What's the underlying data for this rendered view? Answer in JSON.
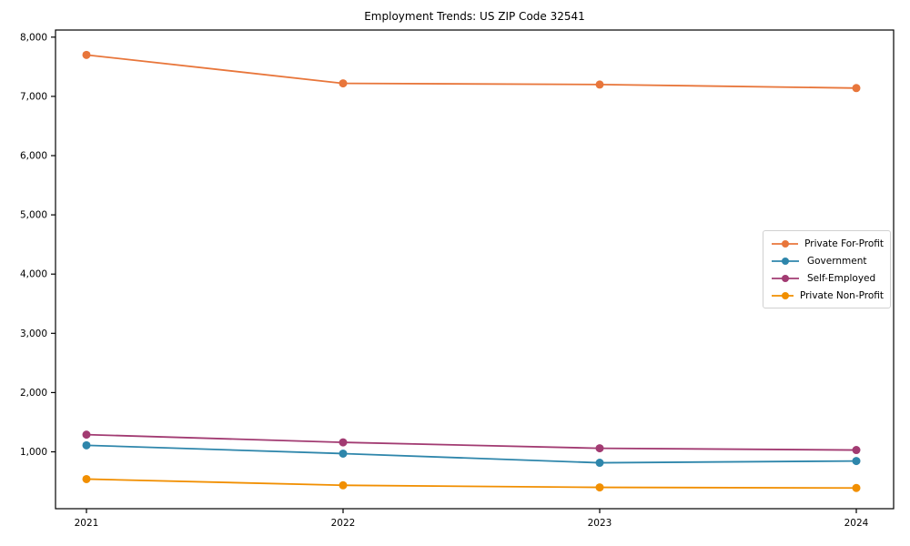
{
  "chart_data": {
    "type": "line",
    "title": "Employment Trends: US ZIP Code 32541",
    "categories": [
      "2021",
      "2022",
      "2023",
      "2024"
    ],
    "series": [
      {
        "name": "Private For-Profit",
        "color": "#E8763B",
        "values": [
          7700,
          7220,
          7200,
          7140
        ]
      },
      {
        "name": "Government",
        "color": "#2E86AB",
        "values": [
          1110,
          970,
          815,
          845
        ]
      },
      {
        "name": "Self-Employed",
        "color": "#A23B72",
        "values": [
          1290,
          1160,
          1060,
          1030
        ]
      },
      {
        "name": "Private Non-Profit",
        "color": "#F18F01",
        "values": [
          540,
          435,
          400,
          390
        ]
      }
    ],
    "xlabel": "",
    "ylabel": "",
    "ylim": [
      40,
      8120
    ],
    "yticks": [
      1000,
      2000,
      3000,
      4000,
      5000,
      6000,
      7000,
      8000
    ],
    "ytick_labels": [
      "1,000",
      "2,000",
      "3,000",
      "4,000",
      "5,000",
      "6,000",
      "7,000",
      "8,000"
    ],
    "grid": false,
    "legend_position": "center-right",
    "axis_color": "#000000",
    "background_color": "#ffffff"
  }
}
